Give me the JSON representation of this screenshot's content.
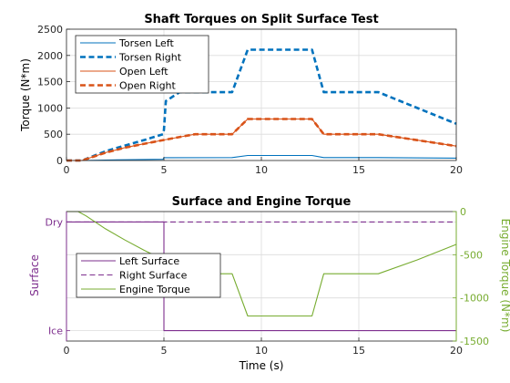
{
  "chart_data": [
    {
      "type": "line",
      "title": "Shaft Torques on Split Surface Test",
      "xlabel": "",
      "ylabel": "Torque (N*m)",
      "xlim": [
        0,
        20
      ],
      "ylim": [
        0,
        2500
      ],
      "xticks": [
        0,
        5,
        10,
        15,
        20
      ],
      "yticks": [
        0,
        500,
        1000,
        1500,
        2000,
        2500
      ],
      "grid": true,
      "legend_position": "top-left",
      "series": [
        {
          "name": "Torsen Left",
          "color": "#0072BD",
          "dash": "solid",
          "width": "thin",
          "x": [
            0,
            0.8,
            2,
            3,
            4,
            4.95,
            5,
            5.05,
            8.5,
            9.3,
            12.6,
            13.2,
            16,
            20
          ],
          "y": [
            0,
            0,
            9,
            14,
            19,
            23,
            52,
            54,
            56,
            95,
            95,
            56,
            55,
            45
          ]
        },
        {
          "name": "Torsen Right",
          "color": "#0072BD",
          "dash": "dashed",
          "width": "thick",
          "x": [
            0,
            0.8,
            2,
            3,
            4,
            4.95,
            5,
            5.1,
            5.8,
            8.5,
            9.3,
            12.6,
            13.2,
            16,
            20
          ],
          "y": [
            0,
            0,
            175,
            285,
            390,
            500,
            580,
            1130,
            1300,
            1300,
            2110,
            2110,
            1300,
            1300,
            700
          ]
        },
        {
          "name": "Open Left",
          "color": "#D95319",
          "dash": "solid",
          "width": "thin",
          "x": [
            0,
            0.8,
            2,
            3,
            4,
            5,
            6,
            6.6,
            8.5,
            9.3,
            12.6,
            13.2,
            16,
            20
          ],
          "y": [
            0,
            0,
            150,
            245,
            320,
            390,
            460,
            500,
            500,
            790,
            790,
            500,
            500,
            275
          ]
        },
        {
          "name": "Open Right",
          "color": "#D95319",
          "dash": "dashed",
          "width": "thick",
          "x": [
            0,
            0.8,
            2,
            3,
            4,
            5,
            6,
            6.6,
            8.5,
            9.3,
            12.6,
            13.2,
            16,
            20
          ],
          "y": [
            0,
            0,
            150,
            245,
            320,
            390,
            460,
            500,
            500,
            790,
            790,
            500,
            500,
            275
          ]
        }
      ]
    },
    {
      "type": "line",
      "title": "Surface and Engine Torque",
      "xlabel": "Time (s)",
      "ylabel": "Surface",
      "ylabel_right": "Engine Torque (N*m)",
      "xlim": [
        0,
        20
      ],
      "ylim_left": [
        0,
        1
      ],
      "ylim_right": [
        -1500,
        0
      ],
      "xticks": [
        0,
        5,
        10,
        15,
        20
      ],
      "yticks_left": [
        {
          "value": 0.92,
          "label": "Dry"
        },
        {
          "value": 0.08,
          "label": "Ice"
        }
      ],
      "yticks_right": [
        -1500,
        -1000,
        -500,
        0
      ],
      "grid": true,
      "legend_position": "center-left",
      "left_axis_color": "#7E2F8E",
      "right_axis_color": "#77AC30",
      "series": [
        {
          "name": "Left Surface",
          "color": "#7E2F8E",
          "dash": "solid",
          "axis": "left",
          "x": [
            0,
            5,
            5,
            20
          ],
          "y": [
            0.92,
            0.92,
            0.08,
            0.08
          ]
        },
        {
          "name": "Right Surface",
          "color": "#7E2F8E",
          "dash": "dashed",
          "axis": "left",
          "x": [
            0,
            20
          ],
          "y": [
            0.92,
            0.92
          ]
        },
        {
          "name": "Engine Torque",
          "color": "#77AC30",
          "dash": "solid",
          "axis": "right",
          "x": [
            0,
            0.6,
            1,
            2,
            3,
            4,
            5,
            6,
            6.6,
            8.5,
            9.3,
            12.6,
            13.2,
            16,
            18,
            20
          ],
          "y": [
            0,
            0,
            -50,
            -200,
            -330,
            -450,
            -560,
            -660,
            -720,
            -720,
            -1210,
            -1210,
            -720,
            -720,
            -560,
            -380
          ]
        }
      ]
    }
  ]
}
